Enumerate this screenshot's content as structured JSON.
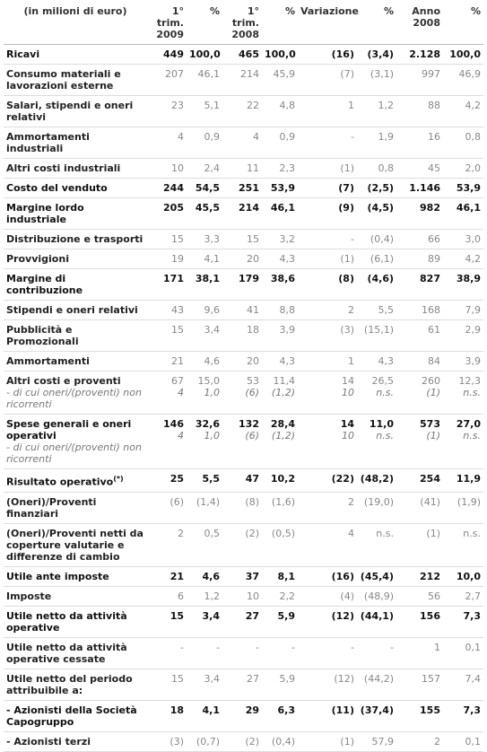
{
  "table": {
    "header": [
      "(in milioni di euro)",
      "1° trim. 2009",
      "%",
      "1° trim. 2008",
      "%",
      "Variazione",
      "%",
      "Anno 2008",
      "%"
    ],
    "rows": [
      {
        "label": "Ricavi",
        "bold": true,
        "cells": [
          "449",
          "100,0",
          "465",
          "100,0",
          "(16)",
          "(3,4)",
          "2.128",
          "100,0"
        ]
      },
      {
        "label": "Consumo materiali e lavorazioni esterne",
        "cells": [
          "207",
          "46,1",
          "214",
          "45,9",
          "(7)",
          "(3,1)",
          "997",
          "46,9"
        ]
      },
      {
        "label": "Salari, stipendi e oneri relativi",
        "cells": [
          "23",
          "5,1",
          "22",
          "4,8",
          "1",
          "1,2",
          "88",
          "4,2"
        ]
      },
      {
        "label": "Ammortamenti industriali",
        "cells": [
          "4",
          "0,9",
          "4",
          "0,9",
          "-",
          "1,9",
          "16",
          "0,8"
        ]
      },
      {
        "label": "Altri costi industriali",
        "cells": [
          "10",
          "2,4",
          "11",
          "2,3",
          "(1)",
          "0,8",
          "45",
          "2,0"
        ]
      },
      {
        "label": "Costo del venduto",
        "bold": true,
        "cells": [
          "244",
          "54,5",
          "251",
          "53,9",
          "(7)",
          "(2,5)",
          "1.146",
          "53,9"
        ]
      },
      {
        "label": "Margine lordo industriale",
        "bold": true,
        "cells": [
          "205",
          "45,5",
          "214",
          "46,1",
          "(9)",
          "(4,5)",
          "982",
          "46,1"
        ]
      },
      {
        "label": "Distribuzione e trasporti",
        "cells": [
          "15",
          "3,3",
          "15",
          "3,2",
          "-",
          "(0,4)",
          "66",
          "3,0"
        ]
      },
      {
        "label": "Provvigioni",
        "cells": [
          "19",
          "4,1",
          "20",
          "4,3",
          "(1)",
          "(6,1)",
          "89",
          "4,2"
        ]
      },
      {
        "label": "Margine di contribuzione",
        "bold": true,
        "cells": [
          "171",
          "38,1",
          "179",
          "38,6",
          "(8)",
          "(4,6)",
          "827",
          "38,9"
        ]
      },
      {
        "label": "Stipendi e oneri relativi",
        "cells": [
          "43",
          "9,6",
          "41",
          "8,8",
          "2",
          "5,5",
          "168",
          "7,9"
        ]
      },
      {
        "label": "Pubblicità e Promozionali",
        "cells": [
          "15",
          "3,4",
          "18",
          "3,9",
          "(3)",
          "(15,1)",
          "61",
          "2,9"
        ]
      },
      {
        "label": "Ammortamenti",
        "cells": [
          "21",
          "4,6",
          "20",
          "4,3",
          "1",
          "4,3",
          "84",
          "3,9"
        ]
      },
      {
        "label": "Altri costi e proventi",
        "sub_label": "- di cui oneri/(proventi) non ricorrenti",
        "cells": [
          "67",
          "15,0",
          "53",
          "11,4",
          "14",
          "26,5",
          "260",
          "12,3"
        ],
        "sub_cells": [
          "4",
          "1,0",
          "(6)",
          "(1,2)",
          "10",
          "n.s.",
          "(1)",
          "n.s."
        ]
      },
      {
        "label": "Spese generali e oneri operativi",
        "bold": true,
        "sub_label": "- di cui oneri/(proventi) non ricorrenti",
        "cells": [
          "146",
          "32,6",
          "132",
          "28,4",
          "14",
          "11,0",
          "573",
          "27,0"
        ],
        "sub_cells": [
          "4",
          "1,0",
          "(6)",
          "(1,2)",
          "10",
          "n.s.",
          "(1)",
          "n.s."
        ]
      },
      {
        "label": "Risultato operativo",
        "note": "(*)",
        "bold": true,
        "cells": [
          "25",
          "5,5",
          "47",
          "10,2",
          "(22)",
          "(48,2)",
          "254",
          "11,9"
        ]
      },
      {
        "label": "(Oneri)/Proventi finanziari",
        "cells": [
          "(6)",
          "(1,4)",
          "(8)",
          "(1,6)",
          "2",
          "(19,0)",
          "(41)",
          "(1,9)"
        ]
      },
      {
        "label": "(Oneri)/Proventi netti da coperture valutarie e differenze di cambio",
        "cells": [
          "2",
          "0,5",
          "(2)",
          "(0,5)",
          "4",
          "n.s.",
          "(1)",
          "n.s."
        ]
      },
      {
        "label": "Utile ante imposte",
        "bold": true,
        "cells": [
          "21",
          "4,6",
          "37",
          "8,1",
          "(16)",
          "(45,4)",
          "212",
          "10,0"
        ]
      },
      {
        "label": "Imposte",
        "cells": [
          "6",
          "1,2",
          "10",
          "2,2",
          "(4)",
          "(48,9)",
          "56",
          "2,7"
        ]
      },
      {
        "label": "Utile netto da attività operative",
        "bold": true,
        "cells": [
          "15",
          "3,4",
          "27",
          "5,9",
          "(12)",
          "(44,1)",
          "156",
          "7,3"
        ]
      },
      {
        "label": "Utile netto da attività operative cessate",
        "cells": [
          "-",
          "-",
          "-",
          "-",
          "-",
          "-",
          "1",
          "0,1"
        ]
      },
      {
        "label": "Utile netto del periodo attribuibile a:",
        "cells": [
          "15",
          "3,4",
          "27",
          "5,9",
          "(12)",
          "(44,2)",
          "157",
          "7,4"
        ]
      },
      {
        "label": "- Azionisti della Società Capogruppo",
        "bold": true,
        "cells": [
          "18",
          "4,1",
          "29",
          "6,3",
          "(11)",
          "(37,4)",
          "155",
          "7,3"
        ]
      },
      {
        "label": "- Azionisti terzi",
        "cells": [
          "(3)",
          "(0,7)",
          "(2)",
          "(0,4)",
          "(1)",
          "57,9",
          "2",
          "0,1"
        ]
      }
    ]
  }
}
